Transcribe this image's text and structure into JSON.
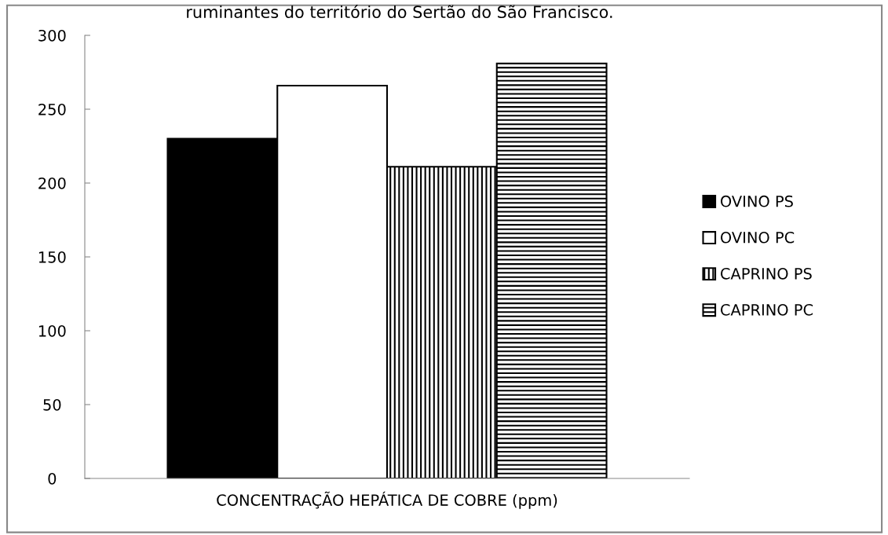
{
  "chart_data": {
    "type": "bar",
    "title": "ruminantes do território do Sertão do São Francisco.",
    "categories": [
      "CONCENTRAÇÃO HEPÁTICA DE COBRE (ppm)"
    ],
    "series": [
      {
        "name": "OVINO PS",
        "color": "#000000",
        "values": [
          230
        ]
      },
      {
        "name": "OVINO PC",
        "color": "#ffffff",
        "values": [
          266
        ]
      },
      {
        "name": "CAPRINO PS",
        "color": "#000000",
        "values": [
          211
        ]
      },
      {
        "name": "CAPRINO PC",
        "color": "#000000",
        "values": [
          281
        ]
      }
    ],
    "ylim": [
      0,
      300
    ],
    "yticks": [
      0,
      50,
      100,
      150,
      200,
      250,
      300
    ],
    "grid": false,
    "legend": "right"
  }
}
